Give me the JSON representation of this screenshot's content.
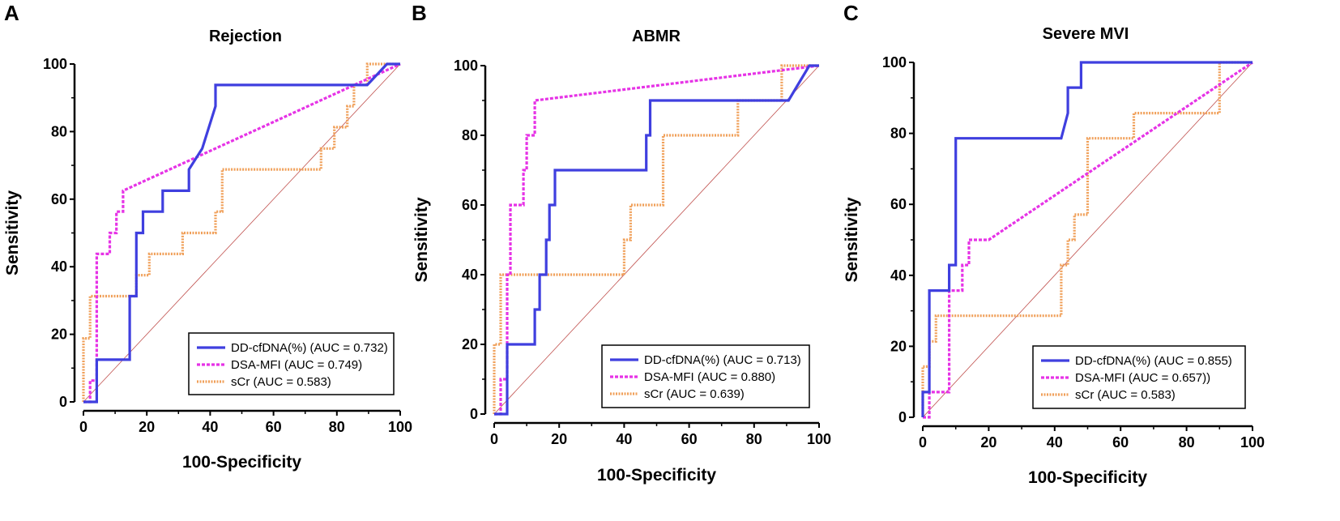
{
  "chart_data": [
    {
      "type": "line",
      "panel": "A",
      "title": "Rejection",
      "xlabel": "100-Specificity",
      "ylabel": "Sensitivity",
      "xlim": [
        0,
        100
      ],
      "ylim": [
        0,
        100
      ],
      "xticks": [
        "0",
        "20",
        "40",
        "60",
        "80",
        "100"
      ],
      "yticks": [
        "0",
        "20",
        "40",
        "60",
        "80",
        "100"
      ],
      "legend_position": "bottom-right",
      "series": [
        {
          "name": "DD-cfDNA(%) (AUC = 0.732)",
          "color": "#3f3fdf",
          "style": "solid",
          "x": [
            0,
            4.2,
            4.2,
            14.6,
            14.6,
            16.7,
            16.7,
            18.8,
            18.8,
            25,
            25,
            33.3,
            33.3,
            37.5,
            41.7,
            41.7,
            89.6,
            95.8,
            100
          ],
          "y": [
            0,
            0,
            12.5,
            12.5,
            31.3,
            31.3,
            50,
            50,
            56.3,
            56.3,
            62.5,
            62.5,
            68.8,
            75,
            87.5,
            93.8,
            93.8,
            100,
            100
          ]
        },
        {
          "name": "DSA-MFI (AUC = 0.749)",
          "color": "#e633e6",
          "style": "dashed",
          "x": [
            0,
            2.1,
            2.1,
            4.2,
            4.2,
            8.3,
            8.3,
            10.4,
            10.4,
            12.5,
            12.5,
            100
          ],
          "y": [
            0,
            0,
            6.3,
            6.3,
            43.8,
            43.8,
            50,
            50,
            56.3,
            56.3,
            62.5,
            100
          ]
        },
        {
          "name": "sCr (AUC = 0.583)",
          "color": "#f0a05a",
          "style": "dashed",
          "x": [
            0,
            0,
            2.1,
            2.1,
            16.7,
            16.7,
            20.8,
            20.8,
            31.3,
            31.3,
            41.7,
            41.7,
            43.8,
            43.8,
            54.2,
            54.2,
            75,
            75,
            79.2,
            79.2,
            83.3,
            83.3,
            85.4,
            85.4,
            89.6,
            89.6,
            100
          ],
          "y": [
            0,
            18.8,
            18.8,
            31.3,
            31.3,
            37.5,
            37.5,
            43.8,
            43.8,
            50,
            50,
            56.3,
            56.3,
            68.8,
            68.8,
            68.8,
            68.8,
            75,
            75,
            81.3,
            81.3,
            87.5,
            87.5,
            93.8,
            93.8,
            100,
            100
          ]
        }
      ]
    },
    {
      "type": "line",
      "panel": "B",
      "title": "ABMR",
      "xlabel": "100-Specificity",
      "ylabel": "Sensitivity",
      "xlim": [
        0,
        100
      ],
      "ylim": [
        0,
        100
      ],
      "xticks": [
        "0",
        "20",
        "40",
        "60",
        "80",
        "100"
      ],
      "yticks": [
        "0",
        "20",
        "40",
        "60",
        "80",
        "100"
      ],
      "legend_position": "bottom-right",
      "series": [
        {
          "name": "DD-cfDNA(%) (AUC = 0.713)",
          "color": "#3f3fdf",
          "style": "solid",
          "x": [
            0,
            4,
            4,
            12.5,
            12.5,
            14,
            14,
            16,
            16,
            17,
            17,
            18.7,
            18.7,
            27,
            27,
            46.8,
            46.8,
            48,
            48,
            90.6,
            93.8,
            97,
            100
          ],
          "y": [
            0,
            0,
            20,
            20,
            30,
            30,
            40,
            40,
            50,
            50,
            60,
            60,
            70,
            70,
            70,
            70,
            80,
            80,
            90,
            90,
            95,
            100,
            100
          ]
        },
        {
          "name": "DSA-MFI (AUC = 0.880)",
          "color": "#e633e6",
          "style": "dashed",
          "x": [
            0,
            2,
            2,
            4,
            4,
            5,
            5,
            9,
            9,
            10,
            10,
            12.5,
            12.5,
            100
          ],
          "y": [
            0,
            0,
            10,
            10,
            40,
            40,
            60,
            60,
            70,
            70,
            80,
            80,
            90,
            100
          ]
        },
        {
          "name": "sCr (AUC = 0.639)",
          "color": "#f0a05a",
          "style": "dashed",
          "x": [
            0,
            0,
            2,
            2,
            40,
            40,
            42,
            42,
            46,
            46,
            52,
            52,
            72,
            72,
            75,
            75,
            88.5,
            88.5,
            100
          ],
          "y": [
            0,
            20,
            20,
            40,
            40,
            50,
            50,
            60,
            60,
            60,
            60,
            80,
            80,
            80,
            80,
            90,
            90,
            100,
            100
          ]
        }
      ]
    },
    {
      "type": "line",
      "panel": "C",
      "title": "Severe MVI",
      "xlabel": "100-Specificity",
      "ylabel": "Sensitivity",
      "xlim": [
        0,
        100
      ],
      "ylim": [
        0,
        100
      ],
      "xticks": [
        "0",
        "20",
        "40",
        "60",
        "80",
        "100"
      ],
      "yticks": [
        "0",
        "20",
        "40",
        "60",
        "80",
        "100"
      ],
      "legend_position": "bottom-right",
      "series": [
        {
          "name": "DD-cfDNA(%) (AUC = 0.855)",
          "color": "#3f3fdf",
          "style": "solid",
          "x": [
            0,
            0,
            2,
            2,
            8,
            8,
            10,
            10,
            42,
            44,
            44,
            48,
            48,
            100
          ],
          "y": [
            0,
            7.1,
            7.1,
            35.7,
            35.7,
            42.9,
            42.9,
            78.6,
            78.6,
            85.7,
            92.9,
            92.9,
            100,
            100
          ]
        },
        {
          "name": "DSA-MFI (AUC = 0.657))",
          "color": "#e633e6",
          "style": "dashed",
          "x": [
            0,
            2,
            2,
            8,
            8,
            12,
            12,
            14,
            14,
            20,
            100
          ],
          "y": [
            0,
            0,
            7.1,
            7.1,
            35.7,
            35.7,
            42.9,
            42.9,
            50,
            50,
            100
          ]
        },
        {
          "name": "sCr (AUC = 0.583)",
          "color": "#f0a05a",
          "style": "dashed",
          "x": [
            0,
            0,
            2,
            2,
            4,
            4,
            42,
            42,
            44,
            44,
            46,
            46,
            48,
            48,
            50,
            50,
            52,
            52,
            64,
            64,
            66,
            66,
            90,
            90,
            100
          ],
          "y": [
            0,
            14.3,
            14.3,
            21.4,
            21.4,
            28.6,
            28.6,
            42.9,
            42.9,
            50,
            50,
            57.1,
            57.1,
            57.1,
            57.1,
            78.6,
            78.6,
            78.6,
            78.6,
            85.7,
            85.7,
            85.7,
            85.7,
            100,
            100
          ]
        }
      ]
    }
  ]
}
